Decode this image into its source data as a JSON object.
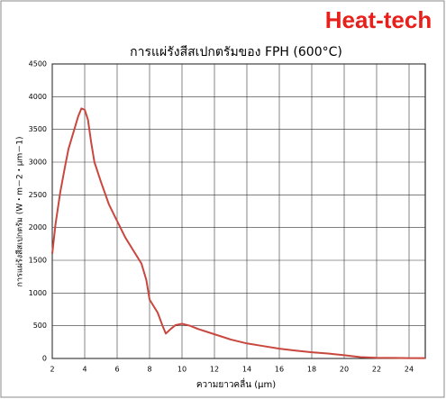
{
  "brand": "Heat-tech",
  "chart_data": {
    "type": "line",
    "title": "การแผ่รังสีสเปกตรัมของ FPH (600°C)",
    "x_label": "ความยาวคลื่น (μm)",
    "y_label": "การแผ่รังสีสเปกตรัม (W・m－2・μm－1)",
    "x": [
      2,
      2.2,
      2.5,
      2.8,
      3.0,
      3.3,
      3.6,
      3.8,
      4.0,
      4.2,
      4.4,
      4.6,
      5.0,
      5.5,
      6.0,
      6.5,
      7.0,
      7.5,
      7.8,
      8.0,
      8.5,
      8.8,
      9.0,
      9.3,
      9.6,
      10.0,
      10.5,
      11,
      12,
      13,
      14,
      15,
      16,
      17,
      18,
      19,
      20,
      21,
      22,
      23,
      24,
      25
    ],
    "series": [
      {
        "color": "#c9473e",
        "values": [
          1600,
          2050,
          2550,
          2950,
          3200,
          3450,
          3700,
          3820,
          3800,
          3650,
          3300,
          3000,
          2700,
          2350,
          2100,
          1850,
          1650,
          1450,
          1200,
          900,
          700,
          500,
          380,
          450,
          510,
          530,
          500,
          450,
          370,
          290,
          230,
          190,
          150,
          120,
          95,
          75,
          50,
          20,
          10,
          8,
          5,
          5
        ]
      }
    ],
    "xlim": [
      2,
      25
    ],
    "xticks": [
      2,
      4,
      6,
      8,
      10,
      12,
      14,
      16,
      18,
      20,
      22,
      24
    ],
    "ylim": [
      0,
      4500
    ],
    "yticks": [
      0,
      500,
      1000,
      1500,
      2000,
      2500,
      3000,
      3500,
      4000,
      4500
    ],
    "grid": true
  }
}
